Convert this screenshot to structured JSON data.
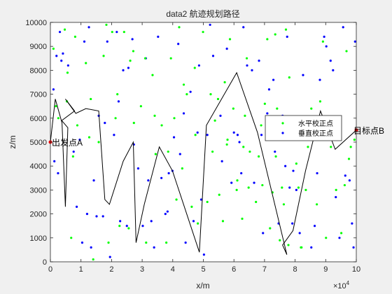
{
  "chart_data": {
    "type": "scatter",
    "title": "data2 航迹规划路径",
    "xlabel": "x/m",
    "ylabel": "z/m",
    "x_exponent_label": "×10",
    "x_exponent_power": "4",
    "xlim": [
      0,
      100000
    ],
    "ylim": [
      0,
      10000
    ],
    "x_ticks": [
      0,
      10000,
      20000,
      30000,
      40000,
      50000,
      60000,
      70000,
      80000,
      90000,
      100000
    ],
    "x_tick_labels": [
      "0",
      "1",
      "2",
      "3",
      "4",
      "5",
      "6",
      "7",
      "8",
      "9",
      "10"
    ],
    "y_ticks": [
      0,
      1000,
      2000,
      3000,
      4000,
      5000,
      6000,
      7000,
      8000,
      9000,
      10000
    ],
    "y_tick_labels": [
      "0",
      "1000",
      "2000",
      "3000",
      "4000",
      "5000",
      "6000",
      "7000",
      "8000",
      "9000",
      "10000"
    ],
    "grid": false,
    "legend_position": "right",
    "colors": {
      "horizontal": "#00ff00",
      "vertical": "#0000ff",
      "path": "#000000",
      "endpoint": "#ff0000"
    },
    "annotations": [
      {
        "text": "出发点A",
        "x": 0,
        "y": 5000
      },
      {
        "text": "目标点B",
        "x": 100000,
        "y": 5500
      }
    ],
    "series": [
      {
        "name": "水平校正点",
        "points": [
          [
            1000,
            8900
          ],
          [
            1800,
            6500
          ],
          [
            2600,
            6000
          ],
          [
            4700,
            9700
          ],
          [
            5400,
            6700
          ],
          [
            5600,
            7900
          ],
          [
            6800,
            1000
          ],
          [
            7400,
            4400
          ],
          [
            8100,
            9400
          ],
          [
            8800,
            5700
          ],
          [
            11600,
            8300
          ],
          [
            12700,
            5200
          ],
          [
            13200,
            6800
          ],
          [
            14000,
            100
          ],
          [
            15800,
            5000
          ],
          [
            17400,
            8600
          ],
          [
            18300,
            9900
          ],
          [
            19000,
            800
          ],
          [
            20200,
            9600
          ],
          [
            21300,
            6000
          ],
          [
            21900,
            7000
          ],
          [
            22600,
            1500
          ],
          [
            24100,
            9600
          ],
          [
            25600,
            1400
          ],
          [
            26100,
            8400
          ],
          [
            27100,
            8800
          ],
          [
            27300,
            5800
          ],
          [
            29600,
            6500
          ],
          [
            31000,
            8500
          ],
          [
            31300,
            800
          ],
          [
            33400,
            7800
          ],
          [
            34100,
            6100
          ],
          [
            34400,
            4500
          ],
          [
            36400,
            5700
          ],
          [
            37900,
            800
          ],
          [
            38500,
            4600
          ],
          [
            39400,
            8500
          ],
          [
            40500,
            6000
          ],
          [
            41200,
            2600
          ],
          [
            42100,
            9800
          ],
          [
            43100,
            3900
          ],
          [
            43600,
            7400
          ],
          [
            44600,
            7000
          ],
          [
            46200,
            2300
          ],
          [
            47200,
            8100
          ],
          [
            47400,
            5300
          ],
          [
            48200,
            1600
          ],
          [
            49900,
            9600
          ],
          [
            51300,
            2500
          ],
          [
            52400,
            7000
          ],
          [
            53000,
            4600
          ],
          [
            53800,
            5900
          ],
          [
            54800,
            6800
          ],
          [
            55200,
            2800
          ],
          [
            56400,
            1700
          ],
          [
            57000,
            7500
          ],
          [
            57700,
            4900
          ],
          [
            57900,
            5100
          ],
          [
            58700,
            9300
          ],
          [
            59800,
            6400
          ],
          [
            60900,
            3000
          ],
          [
            61100,
            3400
          ],
          [
            62700,
            1800
          ],
          [
            63100,
            4800
          ],
          [
            63600,
            6100
          ],
          [
            64200,
            8500
          ],
          [
            64800,
            3100
          ],
          [
            65200,
            4600
          ],
          [
            67200,
            2500
          ],
          [
            68100,
            4400
          ],
          [
            68900,
            5700
          ],
          [
            69300,
            3200
          ],
          [
            70100,
            6600
          ],
          [
            70900,
            9300
          ],
          [
            71800,
            1400
          ],
          [
            72600,
            2900
          ],
          [
            73500,
            9500
          ],
          [
            73700,
            4400
          ],
          [
            74100,
            6400
          ],
          [
            75000,
            900
          ],
          [
            75700,
            3100
          ],
          [
            76300,
            2400
          ],
          [
            77000,
            9700
          ],
          [
            77800,
            700
          ],
          [
            78100,
            7700
          ],
          [
            80400,
            4100
          ],
          [
            81100,
            3100
          ],
          [
            81900,
            600
          ],
          [
            82100,
            600
          ],
          [
            83500,
            3000
          ],
          [
            84200,
            4800
          ],
          [
            85300,
            6400
          ],
          [
            85800,
            5800
          ],
          [
            87100,
            2400
          ],
          [
            88200,
            6700
          ],
          [
            89100,
            9200
          ],
          [
            90100,
            1000
          ],
          [
            91700,
            4800
          ],
          [
            92800,
            5100
          ],
          [
            93400,
            3000
          ],
          [
            95100,
            1200
          ],
          [
            96200,
            3200
          ],
          [
            96800,
            8800
          ],
          [
            97600,
            4300
          ],
          [
            98200,
            4800
          ],
          [
            99400,
            5100
          ]
        ]
      },
      {
        "name": "垂直校正点",
        "points": [
          [
            1000,
            7200
          ],
          [
            1300,
            4200
          ],
          [
            2000,
            8600
          ],
          [
            2500,
            3700
          ],
          [
            3100,
            9600
          ],
          [
            3600,
            8400
          ],
          [
            4100,
            8700
          ],
          [
            5800,
            8200
          ],
          [
            7600,
            4600
          ],
          [
            8600,
            2300
          ],
          [
            9600,
            5100
          ],
          [
            10400,
            800
          ],
          [
            11100,
            9200
          ],
          [
            12000,
            2000
          ],
          [
            12600,
            9800
          ],
          [
            13300,
            600
          ],
          [
            14200,
            3400
          ],
          [
            15100,
            1900
          ],
          [
            15800,
            6100
          ],
          [
            17200,
            1900
          ],
          [
            17800,
            5800
          ],
          [
            18600,
            9200
          ],
          [
            19500,
            200
          ],
          [
            20800,
            5300
          ],
          [
            21700,
            9600
          ],
          [
            22300,
            6700
          ],
          [
            22800,
            1700
          ],
          [
            23800,
            8000
          ],
          [
            25000,
            1500
          ],
          [
            25500,
            8100
          ],
          [
            26800,
            9300
          ],
          [
            27300,
            4900
          ],
          [
            28700,
            3900
          ],
          [
            30200,
            1500
          ],
          [
            31200,
            8500
          ],
          [
            32000,
            3400
          ],
          [
            33000,
            1700
          ],
          [
            33900,
            600
          ],
          [
            35200,
            9400
          ],
          [
            36300,
            3500
          ],
          [
            37600,
            2000
          ],
          [
            38300,
            2100
          ],
          [
            38700,
            3700
          ],
          [
            39900,
            3800
          ],
          [
            40400,
            5200
          ],
          [
            41800,
            9100
          ],
          [
            42400,
            4500
          ],
          [
            43600,
            6200
          ],
          [
            44200,
            800
          ],
          [
            45800,
            7100
          ],
          [
            46800,
            1700
          ],
          [
            48100,
            5400
          ],
          [
            48600,
            8200
          ],
          [
            49300,
            2600
          ],
          [
            50200,
            300
          ],
          [
            51300,
            5300
          ],
          [
            52200,
            9900
          ],
          [
            53200,
            8600
          ],
          [
            55600,
            6100
          ],
          [
            56100,
            4200
          ],
          [
            57700,
            8900
          ],
          [
            59200,
            3300
          ],
          [
            60000,
            5400
          ],
          [
            61200,
            5300
          ],
          [
            61800,
            5000
          ],
          [
            62400,
            3700
          ],
          [
            63100,
            9800
          ],
          [
            64300,
            8200
          ],
          [
            65900,
            8000
          ],
          [
            66600,
            3300
          ],
          [
            68200,
            8400
          ],
          [
            69000,
            5300
          ],
          [
            69500,
            1200
          ],
          [
            70900,
            6200
          ],
          [
            71500,
            7200
          ],
          [
            72900,
            7600
          ],
          [
            73400,
            4600
          ],
          [
            74600,
            1600
          ],
          [
            75900,
            6100
          ],
          [
            76800,
            4000
          ],
          [
            77400,
            9400
          ],
          [
            78200,
            3100
          ],
          [
            79100,
            1600
          ],
          [
            79400,
            3800
          ],
          [
            80400,
            3000
          ],
          [
            81500,
            1200
          ],
          [
            82600,
            7800
          ],
          [
            84400,
            5500
          ],
          [
            85300,
            600
          ],
          [
            86400,
            1500
          ],
          [
            87200,
            3700
          ],
          [
            88100,
            7600
          ],
          [
            89500,
            9400
          ],
          [
            90200,
            9000
          ],
          [
            91600,
            8400
          ],
          [
            92400,
            8000
          ],
          [
            93300,
            2700
          ],
          [
            94500,
            1000
          ],
          [
            95700,
            9800
          ],
          [
            96400,
            3600
          ],
          [
            97800,
            3400
          ],
          [
            98600,
            1600
          ],
          [
            99100,
            600
          ],
          [
            99600,
            9200
          ]
        ]
      },
      {
        "name": "航迹",
        "points": [
          [
            0,
            5000
          ],
          [
            1600,
            6800
          ],
          [
            3800,
            5800
          ],
          [
            4900,
            2300
          ],
          [
            5700,
            5600
          ],
          [
            3700,
            5900
          ],
          [
            7900,
            6300
          ],
          [
            4900,
            6800
          ],
          [
            8300,
            6200
          ],
          [
            11600,
            6400
          ],
          [
            15800,
            6300
          ],
          [
            17800,
            2600
          ],
          [
            19300,
            2400
          ],
          [
            23800,
            4200
          ],
          [
            27100,
            5000
          ],
          [
            28000,
            800
          ],
          [
            30700,
            2400
          ],
          [
            35600,
            4800
          ],
          [
            39900,
            3800
          ],
          [
            48700,
            400
          ],
          [
            51000,
            5700
          ],
          [
            60900,
            7900
          ],
          [
            67700,
            5400
          ],
          [
            77300,
            300
          ],
          [
            75900,
            700
          ],
          [
            79300,
            1300
          ],
          [
            83400,
            3800
          ],
          [
            88300,
            6300
          ],
          [
            93100,
            4700
          ],
          [
            100000,
            5500
          ]
        ]
      }
    ]
  }
}
